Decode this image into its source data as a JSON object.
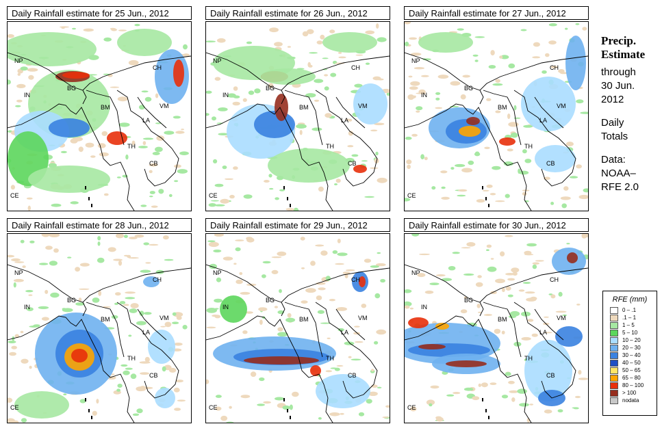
{
  "panels": [
    {
      "title": "Daily Rainfall estimate for  25 Jun., 2012",
      "date": "25 Jun., 2012"
    },
    {
      "title": "Daily Rainfall estimate for  26 Jun., 2012",
      "date": "26 Jun., 2012"
    },
    {
      "title": "Daily Rainfall estimate for  27 Jun., 2012",
      "date": "27 Jun., 2012"
    },
    {
      "title": "Daily Rainfall estimate for  28 Jun., 2012",
      "date": "28 Jun., 2012"
    },
    {
      "title": "Daily Rainfall estimate for  29 Jun., 2012",
      "date": "29 Jun., 2012"
    },
    {
      "title": "Daily Rainfall estimate for  30 Jun., 2012",
      "date": "30 Jun., 2012"
    }
  ],
  "map_labels": [
    "NP",
    "CH",
    "IN",
    "BG",
    "BM",
    "VM",
    "LA",
    "TH",
    "CB",
    "CE"
  ],
  "side": {
    "title_line1": "Precip.",
    "title_line2": "Estimate",
    "through": "through",
    "date_line1": "30 Jun.",
    "date_line2": "2012",
    "daily_line1": "Daily",
    "daily_line2": "Totals",
    "data_line1": "Data:",
    "data_line2": "NOAA–",
    "data_line3": "RFE 2.0"
  },
  "legend": {
    "title": "RFE (mm)",
    "items": [
      {
        "label": "0 – .1",
        "color": "#ffffff"
      },
      {
        "label": ".1 – 1",
        "color": "#eed9bd"
      },
      {
        "label": "1 – 5",
        "color": "#a6e8a2"
      },
      {
        "label": "5 – 10",
        "color": "#5cd65c"
      },
      {
        "label": "10 – 20",
        "color": "#aaddff"
      },
      {
        "label": "20 – 30",
        "color": "#6fb1ef"
      },
      {
        "label": "30 – 40",
        "color": "#3a82e0"
      },
      {
        "label": "40 – 50",
        "color": "#1f4fc4"
      },
      {
        "label": "50 – 65",
        "color": "#ffe566"
      },
      {
        "label": "65 – 80",
        "color": "#ffa500"
      },
      {
        "label": "80 – 100",
        "color": "#e8300b"
      },
      {
        "label": "> 100",
        "color": "#962d1e"
      },
      {
        "label": "nodata",
        "color": "#c8c8c8"
      }
    ]
  }
}
